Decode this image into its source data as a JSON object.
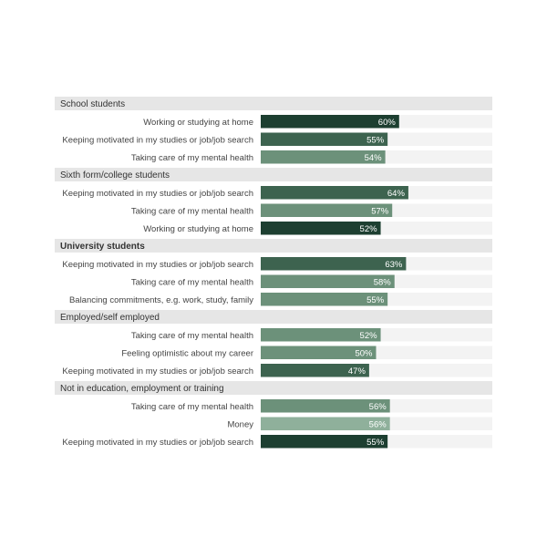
{
  "chart_data": {
    "type": "bar",
    "orientation": "horizontal",
    "xlim": [
      0,
      100
    ],
    "value_suffix": "%",
    "colors": {
      "group_band": "#e6e6e6",
      "track": "#f3f3f3",
      "rank1": "#1d3f31",
      "rank2": "#3d634f",
      "rank3": "#6c917a",
      "light": "#8fb09b"
    },
    "groups": [
      {
        "name": "School students",
        "bold": false,
        "items": [
          {
            "label": "Working or studying at home",
            "value": 60,
            "color": "rank1"
          },
          {
            "label": "Keeping motivated in my studies or job/job search",
            "value": 55,
            "color": "rank2"
          },
          {
            "label": "Taking care of my mental health",
            "value": 54,
            "color": "rank3"
          }
        ]
      },
      {
        "name": "Sixth form/college students",
        "bold": false,
        "items": [
          {
            "label": "Keeping motivated in my studies or job/job search",
            "value": 64,
            "color": "rank2"
          },
          {
            "label": "Taking care of my mental health",
            "value": 57,
            "color": "rank3"
          },
          {
            "label": "Working or studying at home",
            "value": 52,
            "color": "rank1"
          }
        ]
      },
      {
        "name": "University students",
        "bold": true,
        "items": [
          {
            "label": "Keeping motivated in my studies or job/job search",
            "value": 63,
            "color": "rank2"
          },
          {
            "label": "Taking care of my mental health",
            "value": 58,
            "color": "rank3"
          },
          {
            "label": "Balancing commitments, e.g. work, study, family",
            "value": 55,
            "color": "rank3"
          }
        ]
      },
      {
        "name": "Employed/self employed",
        "bold": false,
        "items": [
          {
            "label": "Taking care of my mental health",
            "value": 52,
            "color": "rank3"
          },
          {
            "label": "Feeling optimistic about my career",
            "value": 50,
            "color": "rank3"
          },
          {
            "label": "Keeping motivated in my studies or job/job search",
            "value": 47,
            "color": "rank2"
          }
        ]
      },
      {
        "name": "Not in education, employment or training",
        "bold": false,
        "items": [
          {
            "label": "Taking care of my mental health",
            "value": 56,
            "color": "rank3"
          },
          {
            "label": "Money",
            "value": 56,
            "color": "light"
          },
          {
            "label": "Keeping motivated in my studies or job/job search",
            "value": 55,
            "color": "rank1"
          }
        ]
      }
    ]
  }
}
